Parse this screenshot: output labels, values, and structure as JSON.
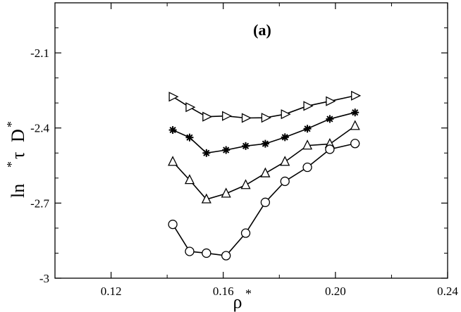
{
  "chart_data": {
    "type": "line",
    "panel_label": "(a)",
    "xlabel": {
      "main": "ρ",
      "sup": "*"
    },
    "ylabel": {
      "p1": "ln",
      "p2": "τ",
      "p3": "D",
      "sup": "*"
    },
    "xlim": [
      0.1,
      0.24
    ],
    "ylim": [
      -3.0,
      -1.9
    ],
    "x_ticks": [
      {
        "value": 0.12,
        "label": "0.12"
      },
      {
        "value": 0.16,
        "label": "0.16"
      },
      {
        "value": 0.2,
        "label": "0.20"
      },
      {
        "value": 0.24,
        "label": "0.24"
      }
    ],
    "y_ticks": [
      {
        "value": -3.0,
        "label": "-3"
      },
      {
        "value": -2.7,
        "label": "-2.7"
      },
      {
        "value": -2.4,
        "label": "-2.4"
      },
      {
        "value": -2.1,
        "label": "-2.1"
      }
    ],
    "x_minor_step": 0.02,
    "y_minor_step": 0.1,
    "grid": false,
    "legend": "none",
    "line_color": "#000000",
    "series": [
      {
        "marker": "triangle-right",
        "points": [
          {
            "x": 0.142,
            "y": -2.275
          },
          {
            "x": 0.148,
            "y": -2.317
          },
          {
            "x": 0.154,
            "y": -2.355
          },
          {
            "x": 0.161,
            "y": -2.352
          },
          {
            "x": 0.168,
            "y": -2.36
          },
          {
            "x": 0.175,
            "y": -2.359
          },
          {
            "x": 0.182,
            "y": -2.345
          },
          {
            "x": 0.19,
            "y": -2.312
          },
          {
            "x": 0.198,
            "y": -2.293
          },
          {
            "x": 0.207,
            "y": -2.271
          }
        ]
      },
      {
        "marker": "asterisk",
        "points": [
          {
            "x": 0.142,
            "y": -2.408
          },
          {
            "x": 0.148,
            "y": -2.438
          },
          {
            "x": 0.154,
            "y": -2.5
          },
          {
            "x": 0.161,
            "y": -2.488
          },
          {
            "x": 0.168,
            "y": -2.472
          },
          {
            "x": 0.175,
            "y": -2.463
          },
          {
            "x": 0.182,
            "y": -2.437
          },
          {
            "x": 0.19,
            "y": -2.403
          },
          {
            "x": 0.198,
            "y": -2.364
          },
          {
            "x": 0.207,
            "y": -2.338
          }
        ]
      },
      {
        "marker": "triangle-up",
        "points": [
          {
            "x": 0.142,
            "y": -2.535
          },
          {
            "x": 0.148,
            "y": -2.608
          },
          {
            "x": 0.154,
            "y": -2.685
          },
          {
            "x": 0.161,
            "y": -2.662
          },
          {
            "x": 0.168,
            "y": -2.628
          },
          {
            "x": 0.175,
            "y": -2.581
          },
          {
            "x": 0.182,
            "y": -2.535
          },
          {
            "x": 0.19,
            "y": -2.47
          },
          {
            "x": 0.198,
            "y": -2.464
          },
          {
            "x": 0.207,
            "y": -2.392
          }
        ]
      },
      {
        "marker": "circle",
        "points": [
          {
            "x": 0.142,
            "y": -2.785
          },
          {
            "x": 0.148,
            "y": -2.893
          },
          {
            "x": 0.154,
            "y": -2.9
          },
          {
            "x": 0.161,
            "y": -2.91
          },
          {
            "x": 0.168,
            "y": -2.82
          },
          {
            "x": 0.175,
            "y": -2.697
          },
          {
            "x": 0.182,
            "y": -2.613
          },
          {
            "x": 0.19,
            "y": -2.557
          },
          {
            "x": 0.198,
            "y": -2.485
          },
          {
            "x": 0.207,
            "y": -2.462
          }
        ]
      }
    ]
  }
}
